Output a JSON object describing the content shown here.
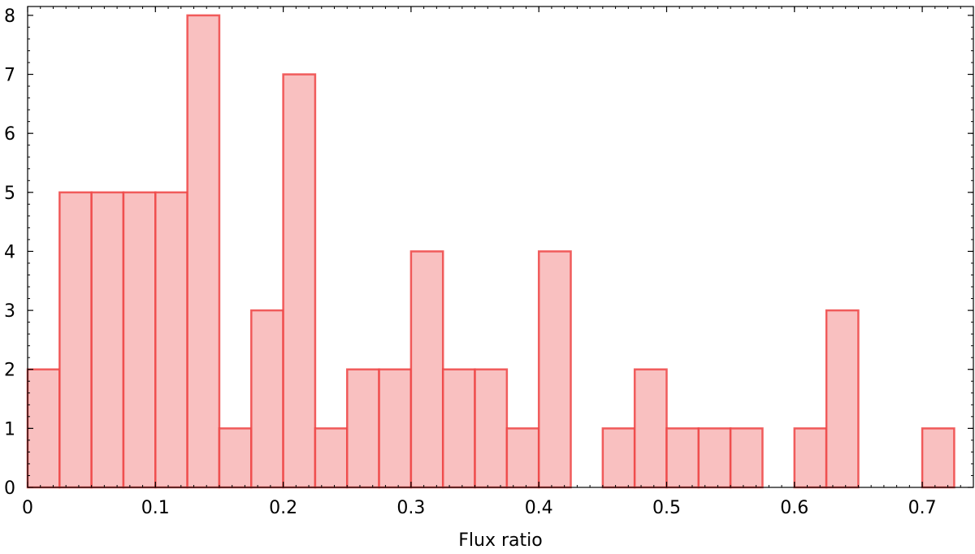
{
  "chart_data": {
    "type": "bar",
    "title": "",
    "xlabel": "Flux ratio",
    "ylabel": "",
    "bin_width": 0.025,
    "bins": [
      {
        "start": 0.0,
        "count": 2
      },
      {
        "start": 0.025,
        "count": 5
      },
      {
        "start": 0.05,
        "count": 5
      },
      {
        "start": 0.075,
        "count": 5
      },
      {
        "start": 0.1,
        "count": 5
      },
      {
        "start": 0.125,
        "count": 8
      },
      {
        "start": 0.15,
        "count": 1
      },
      {
        "start": 0.175,
        "count": 3
      },
      {
        "start": 0.2,
        "count": 7
      },
      {
        "start": 0.225,
        "count": 1
      },
      {
        "start": 0.25,
        "count": 2
      },
      {
        "start": 0.275,
        "count": 2
      },
      {
        "start": 0.3,
        "count": 4
      },
      {
        "start": 0.325,
        "count": 2
      },
      {
        "start": 0.35,
        "count": 2
      },
      {
        "start": 0.375,
        "count": 1
      },
      {
        "start": 0.4,
        "count": 4
      },
      {
        "start": 0.45,
        "count": 1
      },
      {
        "start": 0.475,
        "count": 2
      },
      {
        "start": 0.5,
        "count": 1
      },
      {
        "start": 0.525,
        "count": 1
      },
      {
        "start": 0.55,
        "count": 1
      },
      {
        "start": 0.6,
        "count": 1
      },
      {
        "start": 0.625,
        "count": 3
      },
      {
        "start": 0.7,
        "count": 1
      }
    ],
    "xlim": [
      0,
      0.74
    ],
    "ylim": [
      0,
      8.15
    ],
    "x_ticks": [
      {
        "value": 0,
        "label": "0"
      },
      {
        "value": 0.1,
        "label": "0.1"
      },
      {
        "value": 0.2,
        "label": "0.2"
      },
      {
        "value": 0.3,
        "label": "0.3"
      },
      {
        "value": 0.4,
        "label": "0.4"
      },
      {
        "value": 0.5,
        "label": "0.5"
      },
      {
        "value": 0.6,
        "label": "0.6"
      },
      {
        "value": 0.7,
        "label": "0.7"
      }
    ],
    "y_ticks": [
      {
        "value": 0,
        "label": "0"
      },
      {
        "value": 1,
        "label": "1"
      },
      {
        "value": 2,
        "label": "2"
      },
      {
        "value": 3,
        "label": "3"
      },
      {
        "value": 4,
        "label": "4"
      },
      {
        "value": 5,
        "label": "5"
      },
      {
        "value": 6,
        "label": "6"
      },
      {
        "value": 7,
        "label": "7"
      },
      {
        "value": 8,
        "label": "8"
      }
    ],
    "x_minor_step": 0.01,
    "y_minor_step": 0.2,
    "grid": false,
    "legend": "none",
    "colors": {
      "bar_fill": "#f9c0c0",
      "bar_edge": "#ee4444",
      "axis": "#000000"
    }
  }
}
